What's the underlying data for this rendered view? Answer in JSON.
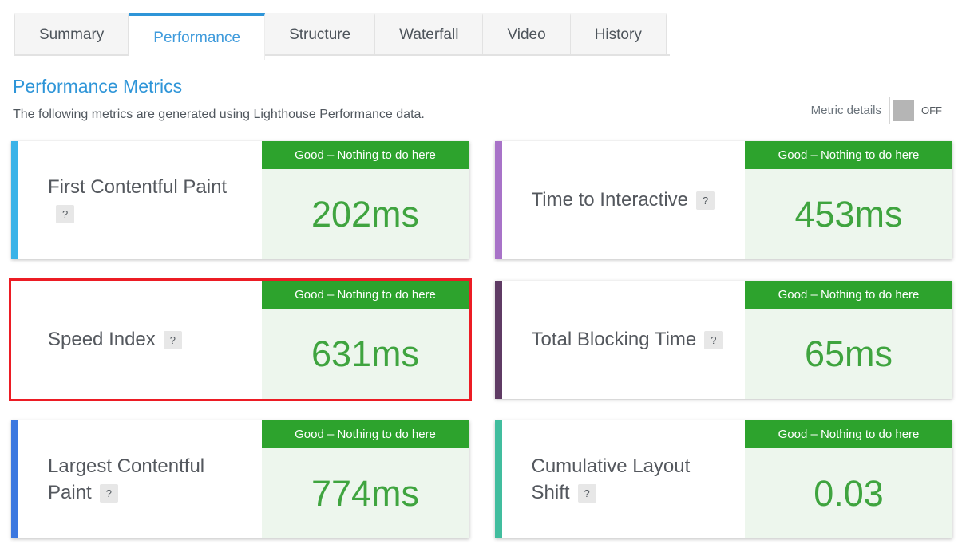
{
  "colors": {
    "tab_accent": "#2e95d8",
    "heading_blue": "#2e95d8",
    "status_green": "#2da32d",
    "value_green": "#3fa43f",
    "value_bg": "#edf6ed",
    "highlight_red": "#ec1c24",
    "toggle_knob": "#b5b5b5"
  },
  "tabs": [
    {
      "label": "Summary",
      "active": false
    },
    {
      "label": "Performance",
      "active": true
    },
    {
      "label": "Structure",
      "active": false
    },
    {
      "label": "Waterfall",
      "active": false
    },
    {
      "label": "Video",
      "active": false
    },
    {
      "label": "History",
      "active": false
    }
  ],
  "header": {
    "title": "Performance Metrics",
    "subtitle": "The following metrics are generated using Lighthouse Performance data.",
    "toggle_label": "Metric details",
    "toggle_state": "OFF"
  },
  "help_icon": "?",
  "cards": [
    {
      "title": "First Contentful Paint",
      "status": "Good – Nothing to do here",
      "value": "202ms",
      "accent_color": "#3bb3e8",
      "highlighted": false
    },
    {
      "title": "Time to Interactive",
      "status": "Good – Nothing to do here",
      "value": "453ms",
      "accent_color": "#a873c8",
      "highlighted": false
    },
    {
      "title": "Speed Index",
      "status": "Good – Nothing to do here",
      "value": "631ms",
      "accent_color": "",
      "highlighted": true
    },
    {
      "title": "Total Blocking Time",
      "status": "Good – Nothing to do here",
      "value": "65ms",
      "accent_color": "#5f3b64",
      "highlighted": false
    },
    {
      "title": "Largest Contentful Paint",
      "status": "Good – Nothing to do here",
      "value": "774ms",
      "accent_color": "#3c78e0",
      "highlighted": false
    },
    {
      "title": "Cumulative Layout Shift",
      "status": "Good – Nothing to do here",
      "value": "0.03",
      "accent_color": "#41bd9e",
      "highlighted": false
    }
  ]
}
